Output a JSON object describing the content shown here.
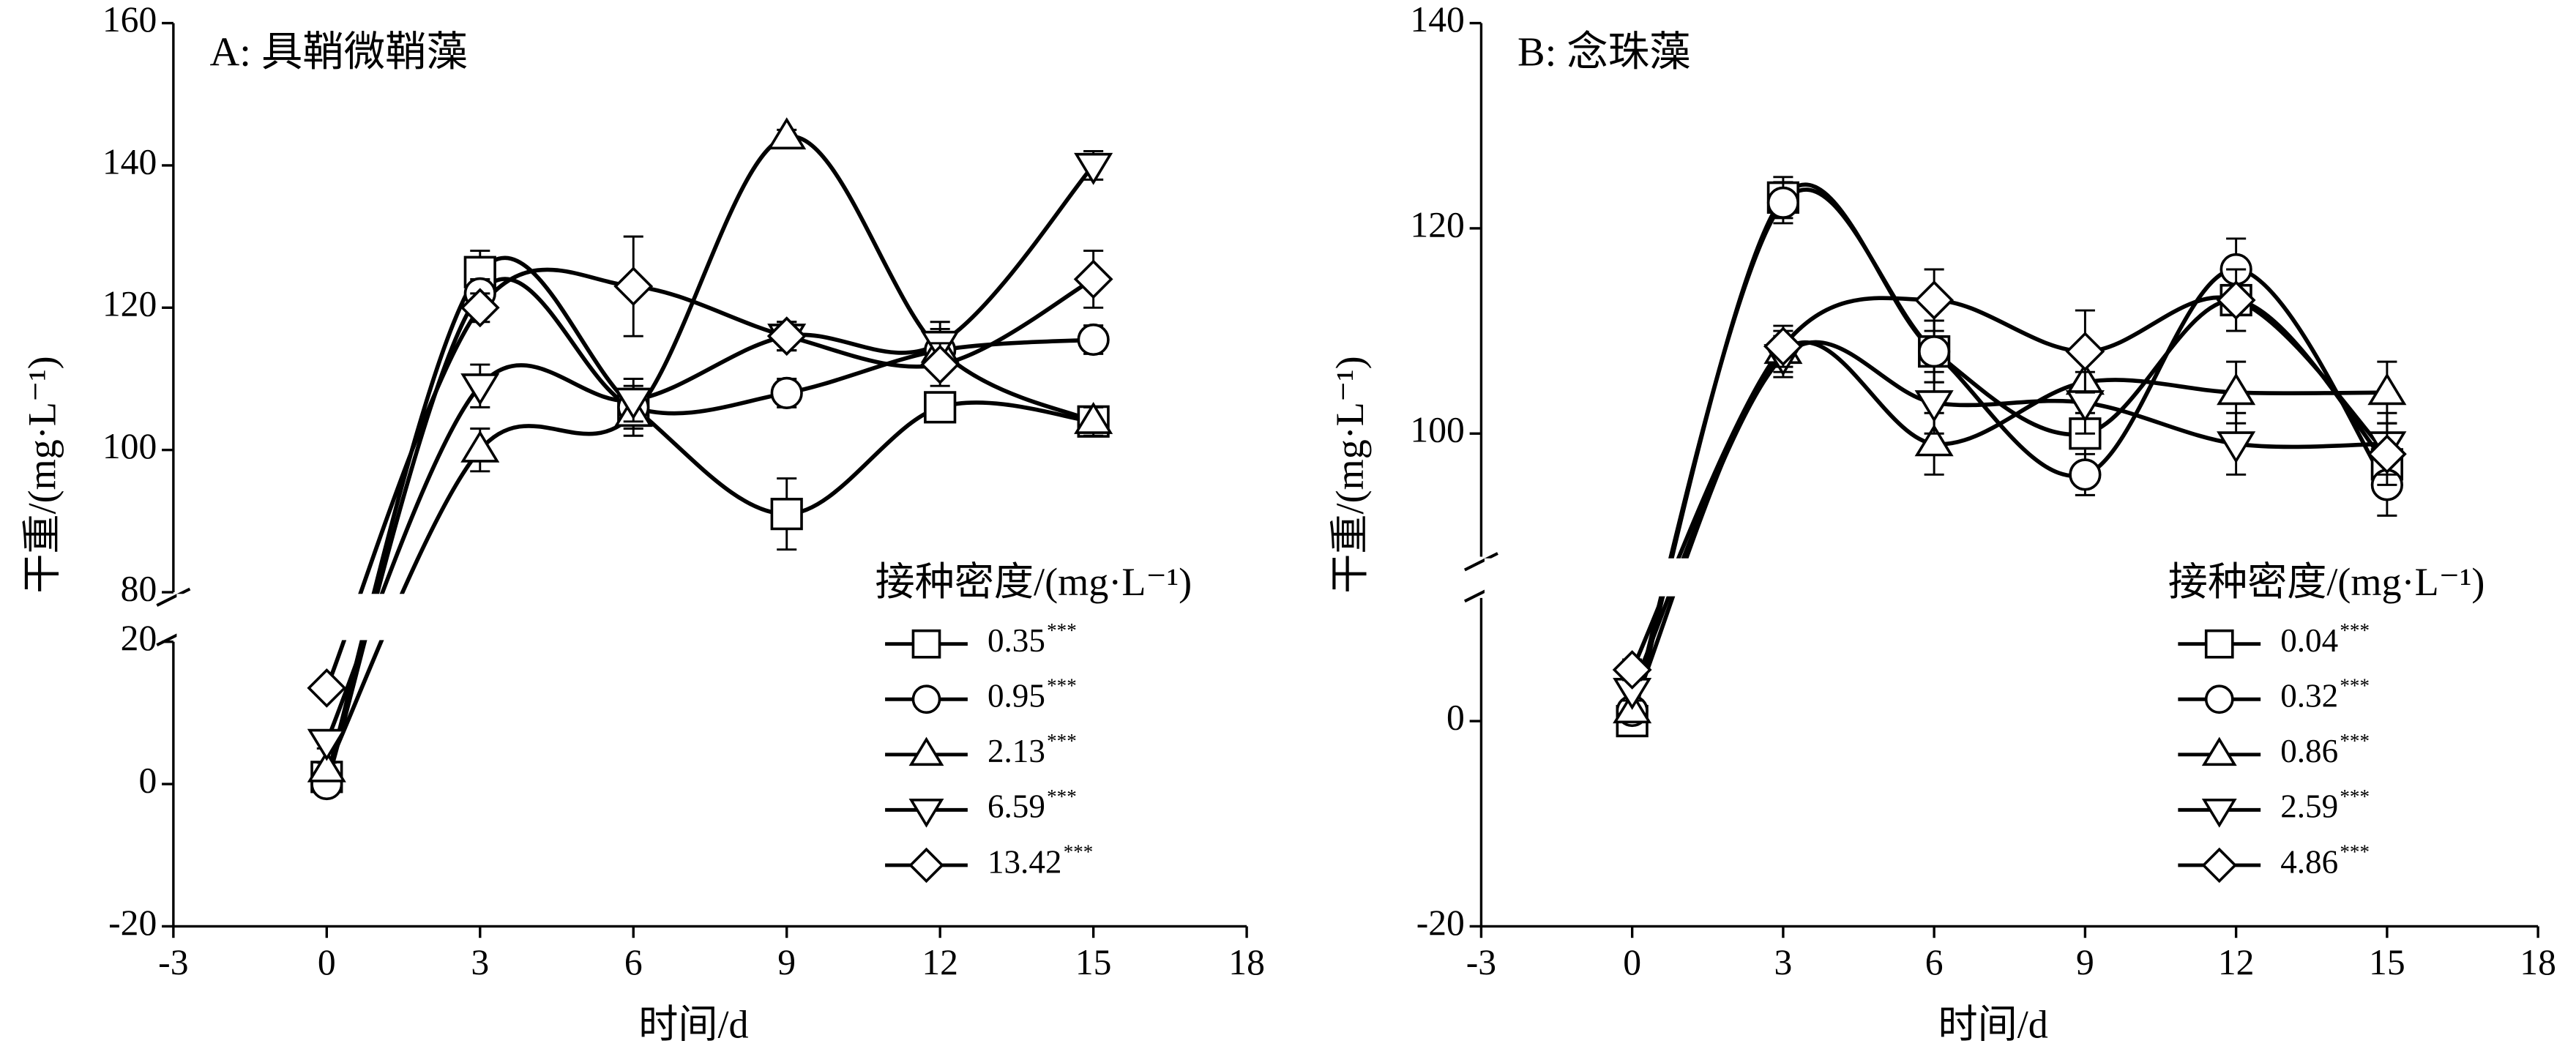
{
  "chart_data": [
    {
      "type": "line",
      "title": "A: 具鞘微鞘藻",
      "x_label": "时间/d",
      "y_label": "干重/(mg·L⁻¹)",
      "x": [
        0,
        3,
        6,
        9,
        12,
        15
      ],
      "xlim": [
        -3,
        18
      ],
      "xticks": [
        -3,
        0,
        3,
        6,
        9,
        12,
        15,
        18
      ],
      "ylim": [
        -20,
        160
      ],
      "ybreak": [
        20,
        80
      ],
      "yticks": [
        -20,
        0,
        20,
        80,
        100,
        120,
        140,
        160
      ],
      "legend_title": "接种密度/(mg·L⁻¹)",
      "series": [
        {
          "name": "0.35",
          "mark_label": "***",
          "marker": "square",
          "color": "#000000",
          "values": [
            1,
            125,
            106,
            91,
            106,
            104
          ],
          "errors": [
            1,
            3,
            3,
            5,
            2,
            2
          ]
        },
        {
          "name": "0.95",
          "mark_label": "***",
          "marker": "circle",
          "color": "#000000",
          "values": [
            0,
            122,
            106,
            108,
            114,
            115.5
          ],
          "errors": [
            1,
            2,
            2,
            2,
            2,
            2
          ]
        },
        {
          "name": "2.13",
          "mark_label": "***",
          "marker": "triangle-up",
          "color": "#000000",
          "values": [
            2,
            100,
            105,
            144,
            114,
            104
          ],
          "errors": [
            1,
            3,
            3,
            1,
            3,
            2
          ]
        },
        {
          "name": "6.59",
          "mark_label": "***",
          "marker": "triangle-down",
          "color": "#000000",
          "values": [
            6,
            109,
            107,
            116,
            115,
            140
          ],
          "errors": [
            1,
            3,
            3,
            2,
            3,
            2
          ]
        },
        {
          "name": "13.42",
          "mark_label": "***",
          "marker": "diamond",
          "color": "#000000",
          "values": [
            13.5,
            120,
            123,
            116,
            112,
            124
          ],
          "errors": [
            1,
            2,
            7,
            2,
            3,
            4
          ]
        }
      ]
    },
    {
      "type": "line",
      "title": "B: 念珠藻",
      "x_label": "时间/d",
      "y_label": "干重/(mg·L⁻¹)",
      "x": [
        0,
        3,
        6,
        9,
        12,
        15
      ],
      "xlim": [
        -3,
        18
      ],
      "xticks": [
        -3,
        0,
        3,
        6,
        9,
        12,
        15,
        18
      ],
      "ylim": [
        -20,
        140
      ],
      "ybreak": [
        12,
        88
      ],
      "yticks": [
        -20,
        0,
        100,
        120,
        140
      ],
      "legend_title": "接种密度/(mg·L⁻¹)",
      "series": [
        {
          "name": "0.04",
          "mark_label": "***",
          "marker": "square",
          "color": "#000000",
          "values": [
            0,
            123,
            108,
            100,
            113,
            97
          ],
          "errors": [
            1,
            2,
            3,
            4,
            3,
            3
          ]
        },
        {
          "name": "0.32",
          "mark_label": "***",
          "marker": "circle",
          "color": "#000000",
          "values": [
            1,
            122.5,
            108,
            96,
            116,
            95
          ],
          "errors": [
            1,
            2,
            3,
            2,
            3,
            3
          ]
        },
        {
          "name": "0.86",
          "mark_label": "***",
          "marker": "triangle-up",
          "color": "#000000",
          "values": [
            1,
            108,
            99,
            105,
            104,
            104
          ],
          "errors": [
            1,
            2,
            3,
            3,
            3,
            3
          ]
        },
        {
          "name": "2.59",
          "mark_label": "***",
          "marker": "triangle-down",
          "color": "#000000",
          "values": [
            3,
            107.5,
            103,
            103,
            99,
            99
          ],
          "errors": [
            1,
            2,
            3,
            3,
            3,
            3
          ]
        },
        {
          "name": "4.86",
          "mark_label": "***",
          "marker": "diamond",
          "color": "#000000",
          "values": [
            5,
            108.5,
            113,
            108,
            113,
            98
          ],
          "errors": [
            1,
            2,
            3,
            4,
            3,
            3
          ]
        }
      ]
    }
  ]
}
